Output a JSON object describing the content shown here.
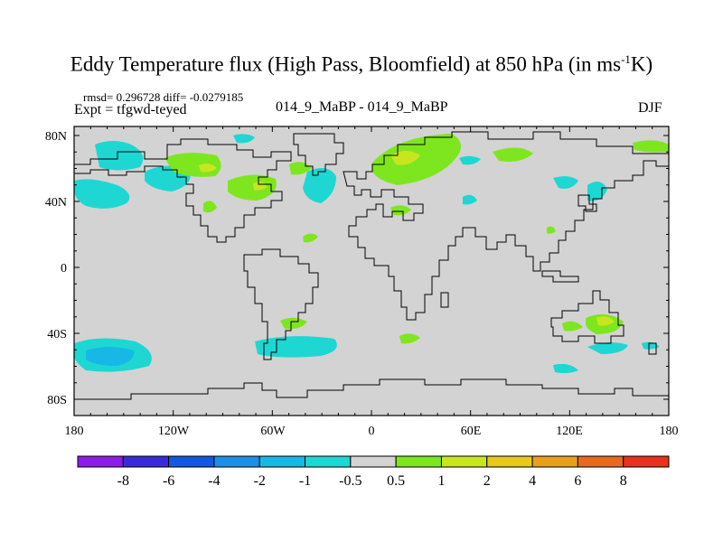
{
  "title": "Eddy Temperature flux (High Pass, Bloomfield) at 850 hPa (in ms",
  "title_sup": "-1",
  "title_end": "K)",
  "stats": {
    "rmsd_label": "rmsd=",
    "rmsd": "0.296728",
    "diff_label": "diff=",
    "diff": "-0.0279185"
  },
  "expt": "Expt = tfgwd-teyed",
  "case": "014_9_MaBP - 014_9_MaBP",
  "season": "DJF",
  "lat_labels": [
    "80N",
    "40N",
    "0",
    "40S",
    "80S"
  ],
  "lon_labels": [
    "180",
    "120W",
    "60W",
    "0",
    "60E",
    "120E",
    "180"
  ],
  "colorbar": {
    "labels": [
      "-8",
      "-6",
      "-4",
      "-2",
      "-1",
      "-0.5",
      "0.5",
      "1",
      "2",
      "4",
      "6",
      "8"
    ],
    "colors": [
      "#8b1ee6",
      "#3a2bd9",
      "#1458e0",
      "#1e8fe6",
      "#18b8e6",
      "#1ed7d2",
      "#d3d3d3",
      "#7ee61e",
      "#c8e61e",
      "#e6c81e",
      "#e6a01e",
      "#e66a1e",
      "#e6321e"
    ]
  },
  "map": {
    "background": "#d3d3d3",
    "field_colors": {
      "neg_small": "#1ed7d2",
      "neg_mid": "#18b8e6",
      "pos_small": "#7ee61e",
      "pos_mid": "#c8e61e"
    }
  }
}
